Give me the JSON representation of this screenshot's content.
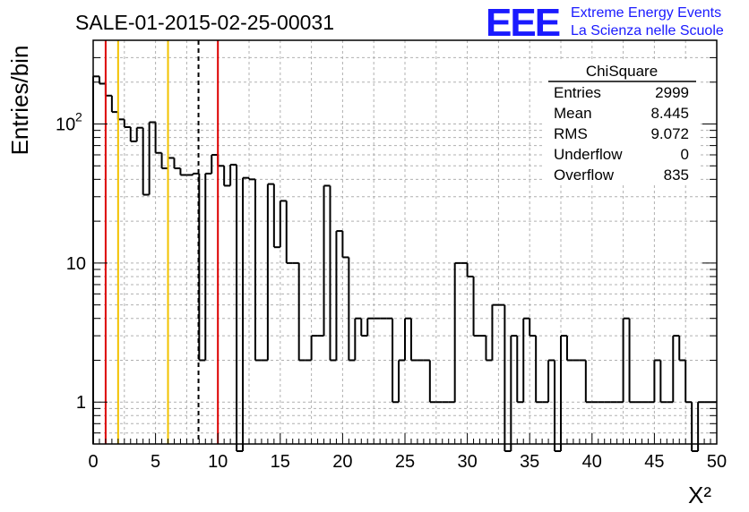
{
  "header": {
    "title": "SALE-01-2015-02-25-00031",
    "logo_letters": "EEE",
    "logo_line1": "Extreme Energy Events",
    "logo_line2": "La Scienza nelle Scuole"
  },
  "stats_box": {
    "name": "ChiSquare",
    "rows": [
      {
        "label": "Entries",
        "value": "2999"
      },
      {
        "label": "Mean",
        "value": "8.445"
      },
      {
        "label": "RMS",
        "value": "9.072"
      },
      {
        "label": "Underflow",
        "value": "0"
      },
      {
        "label": "Overflow",
        "value": "835"
      }
    ]
  },
  "colors": {
    "histogram": "#000000",
    "red_line": "#dd0000",
    "yellow_line": "#f2c200",
    "mean_line": "#000000",
    "grid": "#b0b0b0",
    "logo": "#1a1aff"
  },
  "chart_data": {
    "type": "bar",
    "style": "step-histogram",
    "xlabel": "X²",
    "ylabel": "Entries/bin",
    "xlim": [
      0,
      50
    ],
    "ylim": [
      0.5,
      400
    ],
    "y_scale": "log",
    "grid": true,
    "bin_width": 0.5,
    "x_ticks": [
      "0",
      "5",
      "10",
      "15",
      "20",
      "25",
      "30",
      "35",
      "40",
      "45",
      "50"
    ],
    "y_ticks": [
      {
        "value": 1,
        "label": "1"
      },
      {
        "value": 10,
        "label": "10"
      },
      {
        "value": 100,
        "label": "10",
        "exponent": "2"
      }
    ],
    "values": [
      220,
      195,
      160,
      122,
      108,
      95,
      75,
      94,
      31,
      103,
      62,
      48,
      57,
      48,
      43,
      43,
      44,
      2,
      44,
      60,
      50,
      36,
      51,
      0,
      41,
      40,
      2,
      2,
      37,
      13,
      28,
      10,
      10,
      2,
      2,
      3,
      3,
      36,
      2,
      17,
      11,
      2,
      4,
      3,
      4,
      4,
      4,
      4,
      1,
      2,
      4,
      2,
      2,
      2,
      1,
      1,
      1,
      1,
      10,
      10,
      8,
      3,
      3,
      2,
      5,
      5,
      0,
      3,
      1,
      4,
      3,
      1,
      1,
      2,
      0,
      3,
      2,
      2,
      2,
      1,
      1,
      1,
      1,
      1,
      1,
      4,
      1,
      1,
      1,
      1,
      2,
      1,
      1,
      3,
      2,
      1,
      0,
      1,
      1,
      1
    ],
    "vertical_lines": [
      {
        "x": 1.0,
        "style": "red"
      },
      {
        "x": 2.0,
        "style": "yellow"
      },
      {
        "x": 6.0,
        "style": "yellow"
      },
      {
        "x": 8.445,
        "style": "mean-dashed"
      },
      {
        "x": 10.0,
        "style": "red"
      }
    ]
  }
}
